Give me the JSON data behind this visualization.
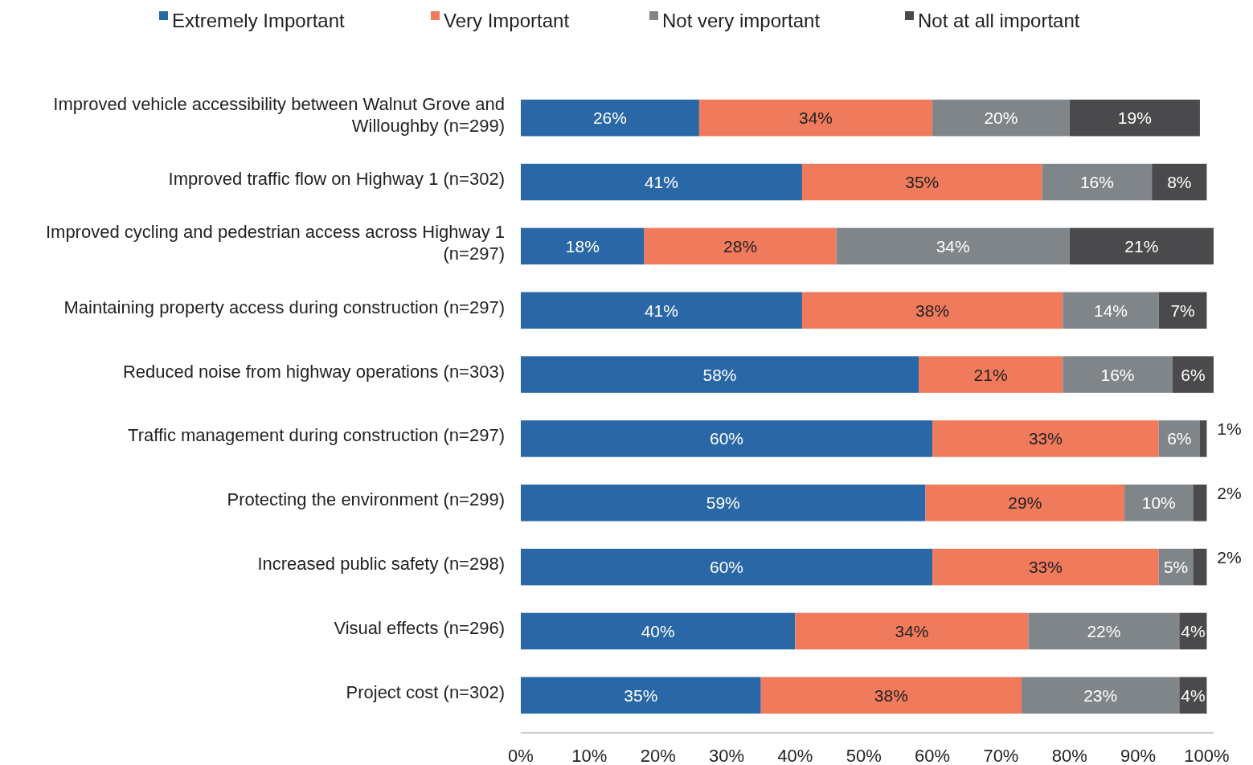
{
  "chart_data": {
    "type": "bar",
    "orientation": "horizontal",
    "stacked": true,
    "legend": "top",
    "grid": false,
    "categories": [
      "Improved vehicle accessibility between Walnut Grove and Willoughby (n=299)",
      "Improved traffic flow on Highway 1 (n=302)",
      "Improved cycling and pedestrian access across Highway 1 (n=297)",
      "Maintaining property access during construction (n=297)",
      "Reduced noise from highway operations (n=303)",
      "Traffic management during construction (n=297)",
      "Protecting the environment (n=299)",
      "Increased public safety (n=298)",
      "Visual effects (n=296)",
      "Project cost (n=302)"
    ],
    "series": [
      {
        "name": "Extremely Important",
        "color": "#2a67a6",
        "values": [
          26,
          41,
          18,
          41,
          58,
          60,
          59,
          60,
          40,
          35
        ],
        "value_labels": [
          "26%",
          "41%",
          "18%",
          "41%",
          "58%",
          "60%",
          "59%",
          "60%",
          "40%",
          "35%"
        ]
      },
      {
        "name": "Very Important",
        "color": "#f07a5c",
        "values": [
          34,
          35,
          28,
          38,
          21,
          33,
          29,
          33,
          34,
          38
        ],
        "value_labels": [
          "34%",
          "35%",
          "28%",
          "38%",
          "21%",
          "33%",
          "29%",
          "33%",
          "34%",
          "38%"
        ]
      },
      {
        "name": "Not very important",
        "color": "#808589",
        "values": [
          20,
          16,
          34,
          14,
          16,
          6,
          10,
          5,
          22,
          23
        ],
        "value_labels": [
          "20%",
          "16%",
          "34%",
          "14%",
          "16%",
          "6%",
          "10%",
          "5%",
          "22%",
          "23%"
        ]
      },
      {
        "name": "Not at all important",
        "color": "#4a4a4c",
        "values": [
          19,
          8,
          21,
          7,
          6,
          1,
          2,
          2,
          4,
          4
        ],
        "value_labels": [
          "19%",
          "8%",
          "21%",
          "7%",
          "6%",
          "1%",
          "2%",
          "2%",
          "4%",
          "4%"
        ]
      }
    ],
    "xlim": [
      0,
      101
    ],
    "xticks": [
      {
        "value": 0,
        "label": "0%"
      },
      {
        "value": 10,
        "label": "10%"
      },
      {
        "value": 20,
        "label": "20%"
      },
      {
        "value": 30,
        "label": "30%"
      },
      {
        "value": 40,
        "label": "40%"
      },
      {
        "value": 50,
        "label": "50%"
      },
      {
        "value": 60,
        "label": "60%"
      },
      {
        "value": 70,
        "label": "70%"
      },
      {
        "value": 80,
        "label": "80%"
      },
      {
        "value": 90,
        "label": "90%"
      },
      {
        "value": 100,
        "label": "100%"
      }
    ]
  }
}
